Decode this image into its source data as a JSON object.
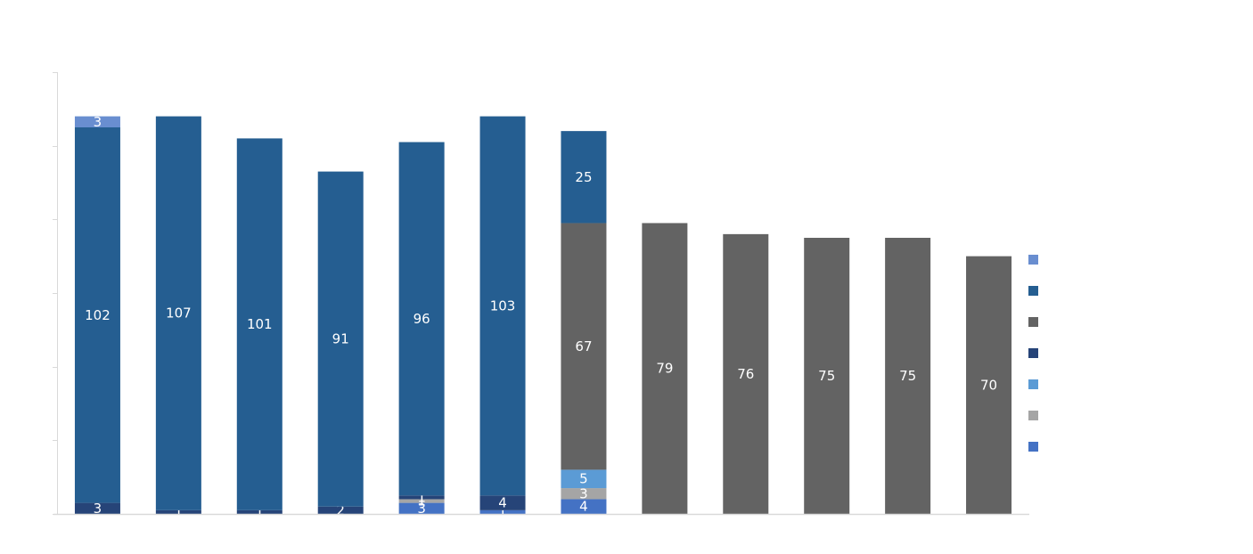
{
  "chart_data": {
    "type": "bar",
    "stacked": true,
    "title": "",
    "xlabel": "",
    "ylabel": "",
    "ylim": [
      0,
      120
    ],
    "grid": false,
    "legend_position": "right",
    "categories": [
      "",
      "",
      "",
      "",
      "",
      "",
      "",
      "",
      "",
      "",
      "",
      ""
    ],
    "series": [
      {
        "color": "#4472C4",
        "values": [
          0,
          0,
          0,
          0,
          3,
          1,
          4,
          0,
          0,
          0,
          0,
          0
        ]
      },
      {
        "color": "#A5A5A5",
        "values": [
          0,
          0,
          0,
          0,
          1,
          0,
          3,
          0,
          0,
          0,
          0,
          0
        ]
      },
      {
        "color": "#5B9BD5",
        "values": [
          0,
          0,
          0,
          0,
          0,
          0,
          5,
          0,
          0,
          0,
          0,
          0
        ]
      },
      {
        "color": "#264478",
        "values": [
          3,
          1,
          1,
          2,
          1,
          4,
          0,
          0,
          0,
          0,
          0,
          0
        ]
      },
      {
        "color": "#636363",
        "values": [
          0,
          0,
          0,
          0,
          0,
          0,
          67,
          79,
          76,
          75,
          75,
          70
        ]
      },
      {
        "color": "#255E91",
        "values": [
          102,
          107,
          101,
          91,
          96,
          103,
          25,
          0,
          0,
          0,
          0,
          0
        ]
      },
      {
        "color": "#698ED0",
        "values": [
          3,
          0,
          0,
          0,
          0,
          0,
          0,
          0,
          0,
          0,
          0,
          0
        ]
      }
    ]
  }
}
